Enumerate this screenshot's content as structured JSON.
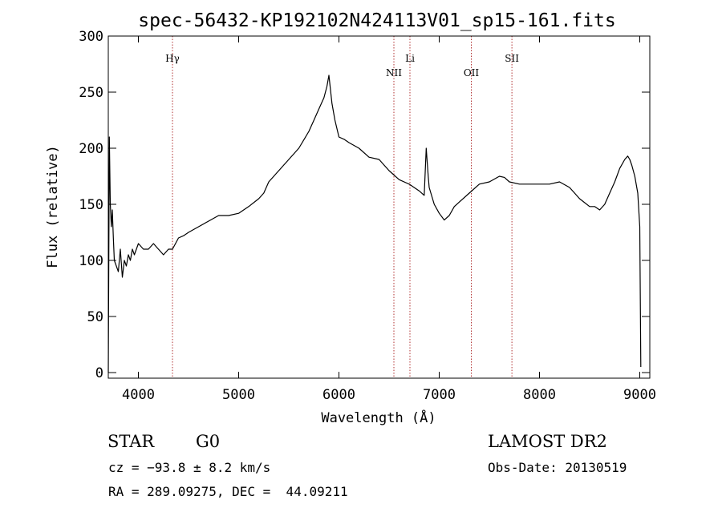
{
  "chart_data": {
    "type": "line",
    "title": "spec-56432-KP192102N424113V01_sp15-161.fits",
    "xlabel": "Wavelength (Å)",
    "ylabel": "Flux (relative)",
    "xlim": [
      3700,
      9100
    ],
    "ylim": [
      -5,
      300
    ],
    "xticks": [
      4000,
      5000,
      6000,
      7000,
      8000,
      9000
    ],
    "yticks": [
      0,
      50,
      100,
      150,
      200,
      250,
      300
    ],
    "line_markers": [
      {
        "label": "Hγ",
        "wavelength": 4340
      },
      {
        "label": "NII",
        "wavelength": 6548
      },
      {
        "label": "Li",
        "wavelength": 6708
      },
      {
        "label": "OII",
        "wavelength": 7320
      },
      {
        "label": "SII",
        "wavelength": 7725
      }
    ],
    "series": [
      {
        "x": [
          3700,
          3710,
          3720,
          3730,
          3740,
          3750,
          3760,
          3780,
          3800,
          3820,
          3840,
          3860,
          3880,
          3900,
          3920,
          3940,
          3960,
          3980,
          4000,
          4050,
          4100,
          4150,
          4200,
          4250,
          4300,
          4340,
          4400,
          4450,
          4500,
          4600,
          4700,
          4800,
          4900,
          5000,
          5100,
          5200,
          5250,
          5300,
          5400,
          5500,
          5600,
          5700,
          5750,
          5800,
          5850,
          5880,
          5900,
          5930,
          5960,
          6000,
          6050,
          6100,
          6200,
          6300,
          6400,
          6500,
          6600,
          6700,
          6800,
          6850,
          6870,
          6890,
          6900,
          6950,
          7000,
          7050,
          7100,
          7150,
          7200,
          7300,
          7400,
          7500,
          7600,
          7650,
          7700,
          7800,
          7900,
          8000,
          8100,
          8200,
          8300,
          8400,
          8500,
          8550,
          8600,
          8650,
          8700,
          8750,
          8800,
          8850,
          8880,
          8900,
          8920,
          8950,
          8980,
          9000,
          9010
        ],
        "y": [
          0,
          210,
          150,
          130,
          145,
          120,
          100,
          95,
          90,
          110,
          85,
          100,
          95,
          105,
          100,
          110,
          105,
          110,
          115,
          110,
          110,
          115,
          110,
          105,
          110,
          110,
          120,
          122,
          125,
          130,
          135,
          140,
          140,
          142,
          148,
          155,
          160,
          170,
          180,
          190,
          200,
          215,
          225,
          235,
          245,
          255,
          265,
          240,
          225,
          210,
          208,
          205,
          200,
          192,
          190,
          180,
          172,
          168,
          162,
          158,
          200,
          175,
          165,
          150,
          142,
          136,
          140,
          148,
          152,
          160,
          168,
          170,
          175,
          174,
          170,
          168,
          168,
          168,
          168,
          170,
          165,
          155,
          148,
          148,
          145,
          150,
          160,
          170,
          182,
          190,
          193,
          190,
          185,
          175,
          160,
          130,
          5
        ]
      }
    ]
  },
  "info": {
    "class_label": "STAR",
    "subclass_label": "G0",
    "survey": "LAMOST DR2",
    "cz": "cz = −93.8 ± 8.2 km/s",
    "obs_date": "Obs-Date: 20130519",
    "coords": "RA = 289.09275, DEC =  44.09211"
  }
}
